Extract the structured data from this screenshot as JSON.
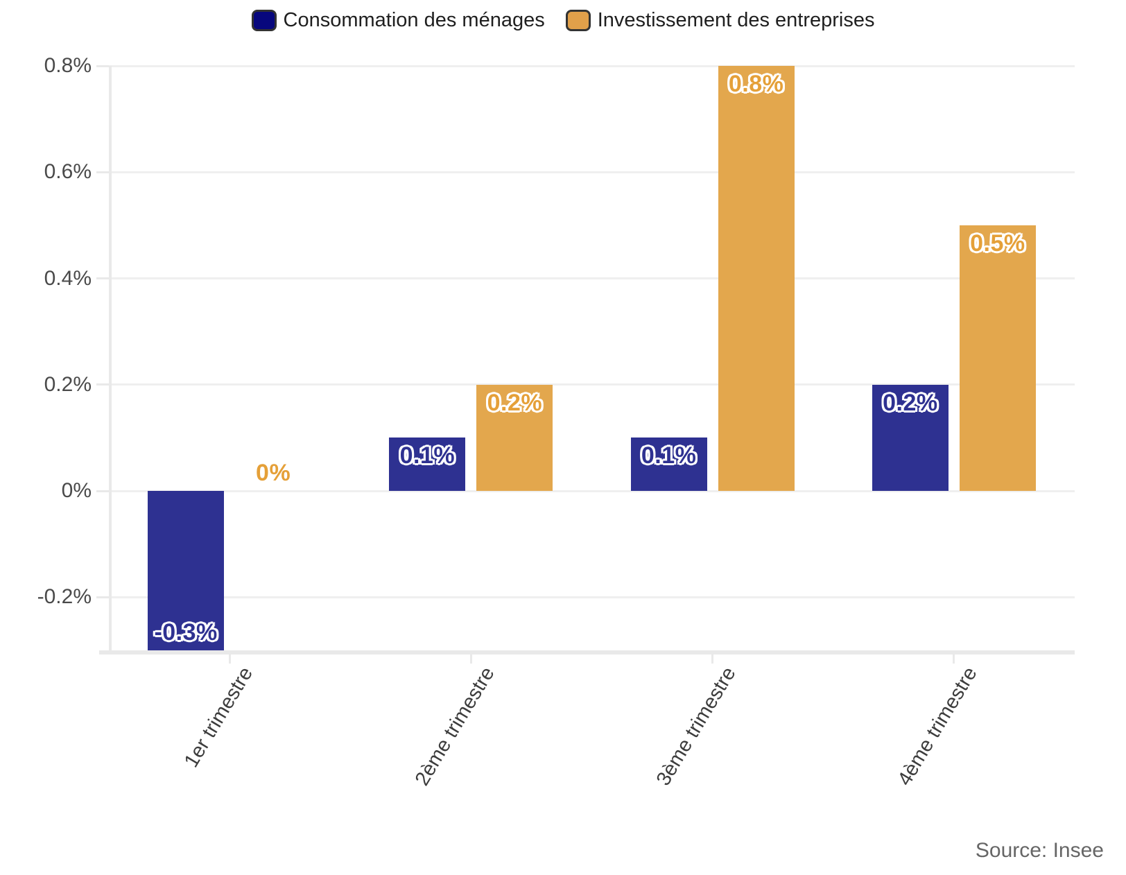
{
  "chart_data": {
    "type": "bar",
    "categories": [
      "1er trimestre",
      "2ème trimestre",
      "3ème trimestre",
      "4ème trimestre"
    ],
    "series": [
      {
        "name": "Consommation des ménages",
        "slug": "consommation",
        "values": [
          -0.3,
          0.1,
          0.1,
          0.2
        ],
        "labels": [
          "-0.3%",
          "0.1%",
          "0.1%",
          "0.2%"
        ],
        "bar_color": "#2e3191",
        "label_color": "#2e3191",
        "legend_color": "#07077d"
      },
      {
        "name": "Investissement des entreprises",
        "slug": "investissement",
        "values": [
          0,
          0.2,
          0.8,
          0.5
        ],
        "labels": [
          "0%",
          "0.2%",
          "0.8%",
          "0.5%"
        ],
        "bar_color": "#e3a74d",
        "label_color": "#e5a038",
        "legend_color": "#e1a04a"
      }
    ],
    "yticks": [
      {
        "value": 0.8,
        "label": "0.8%"
      },
      {
        "value": 0.6,
        "label": "0.6%"
      },
      {
        "value": 0.4,
        "label": "0.4%"
      },
      {
        "value": 0.2,
        "label": "0.2%"
      },
      {
        "value": 0,
        "label": "0%"
      },
      {
        "value": -0.2,
        "label": "-0.2%"
      }
    ],
    "ylim": [
      -0.3,
      0.8
    ],
    "grid": true,
    "legend_position": "top",
    "source": "Source: Insee"
  },
  "colors": {
    "grid": "#efefef",
    "axis": "#e9e9e9",
    "y_label_text": "#4a4a4a",
    "x_label_text": "#3d3d3d",
    "legend_text": "#1f1f1f",
    "legend_border": "#333333",
    "source_text": "#666666",
    "background": "#ffffff"
  }
}
